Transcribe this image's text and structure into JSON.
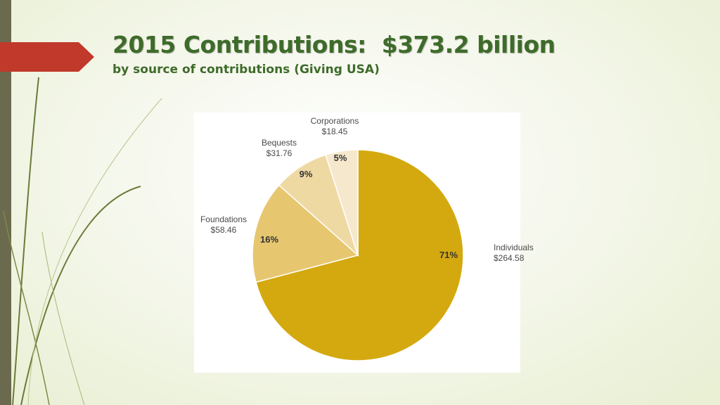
{
  "slide": {
    "title": "2015 Contributions:  $373.2 billion",
    "subtitle": "by source of contributions (Giving USA)"
  },
  "colors": {
    "title_green": "#3e6b2a",
    "arrow_red": "#c0392b",
    "left_bar": "#6b6a4e"
  },
  "chart_data": {
    "type": "pie",
    "start_angle_deg": 0,
    "direction": "clockwise",
    "slices": [
      {
        "name": "Individuals",
        "value_label": "$264.58",
        "value": 264.58,
        "percent": 71,
        "percent_label": "71%",
        "color": "#d4a90f"
      },
      {
        "name": "Foundations",
        "value_label": "$58.46",
        "value": 58.46,
        "percent": 16,
        "percent_label": "16%",
        "color": "#e6c66f"
      },
      {
        "name": "Bequests",
        "value_label": "$31.76",
        "value": 31.76,
        "percent": 9,
        "percent_label": "9%",
        "color": "#efd9a3"
      },
      {
        "name": "Corporations",
        "value_label": "$18.45",
        "value": 18.45,
        "percent": 5,
        "percent_label": "5%",
        "color": "#f5e8cc"
      }
    ]
  }
}
